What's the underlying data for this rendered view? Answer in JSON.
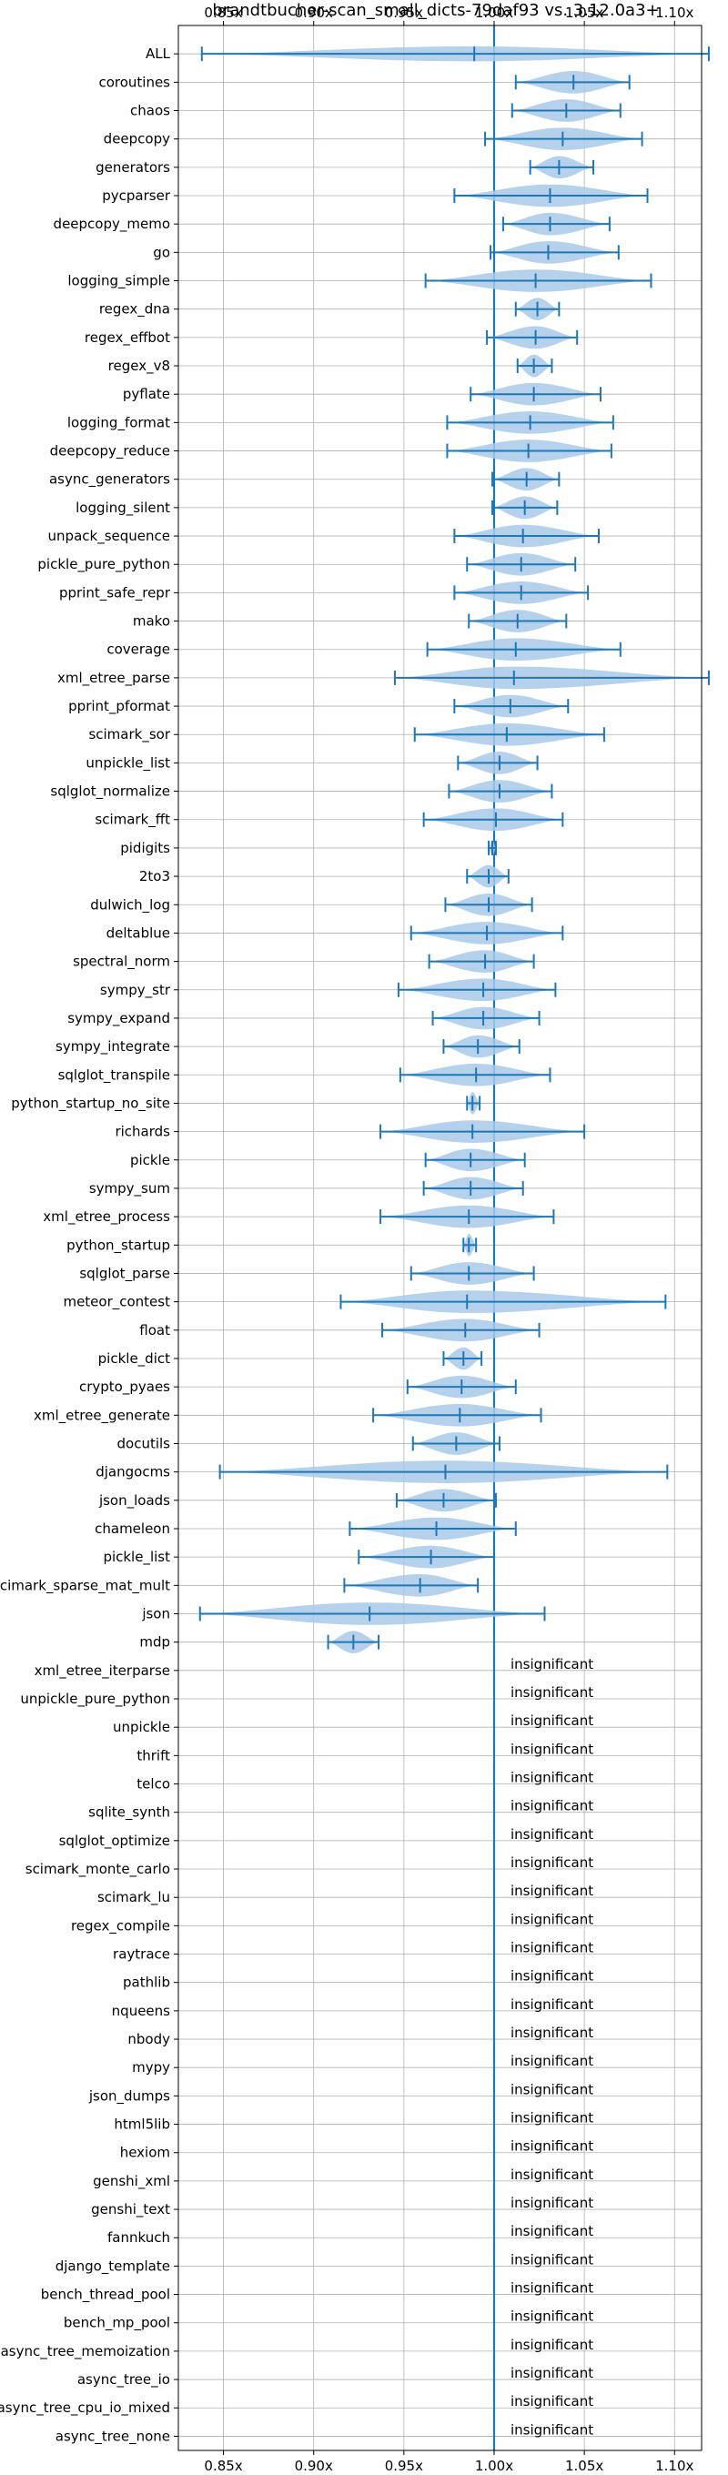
{
  "chart_data": {
    "type": "violin",
    "title": "brandtbucher-scan_small_dicts-79daf93 vs. 3.12.0a3+",
    "xlabel": "",
    "ylabel": "",
    "xlim": [
      0.825,
      1.115
    ],
    "x_ticks": [
      0.85,
      0.9,
      0.95,
      1.0,
      1.05,
      1.1
    ],
    "x_tick_labels": [
      "0.85x",
      "0.90x",
      "0.95x",
      "1.00x",
      "1.05x",
      "1.10x"
    ],
    "reference_line": 1.0,
    "grid": true,
    "series_color": "#1f77b4",
    "violin_fill": "#a9c9e8",
    "insignificant_label": "insignificant",
    "benchmarks": [
      {
        "name": "ALL",
        "min": 0.838,
        "max": 1.119,
        "median": 0.989,
        "peak": 0.989,
        "width": 0.6
      },
      {
        "name": "coroutines",
        "min": 1.012,
        "max": 1.075,
        "median": 1.044,
        "width": 0.9
      },
      {
        "name": "chaos",
        "min": 1.01,
        "max": 1.07,
        "median": 1.04,
        "width": 0.9
      },
      {
        "name": "deepcopy",
        "min": 0.995,
        "max": 1.082,
        "median": 1.038,
        "width": 0.9
      },
      {
        "name": "generators",
        "min": 1.02,
        "max": 1.055,
        "median": 1.036,
        "width": 0.9
      },
      {
        "name": "pycparser",
        "min": 0.978,
        "max": 1.085,
        "median": 1.031,
        "width": 0.9
      },
      {
        "name": "deepcopy_memo",
        "min": 1.005,
        "max": 1.064,
        "median": 1.031,
        "width": 0.9
      },
      {
        "name": "go",
        "min": 0.998,
        "max": 1.069,
        "median": 1.03,
        "width": 0.9
      },
      {
        "name": "logging_simple",
        "min": 0.962,
        "max": 1.087,
        "median": 1.023,
        "width": 0.9
      },
      {
        "name": "regex_dna",
        "min": 1.012,
        "max": 1.036,
        "median": 1.024,
        "width": 0.9
      },
      {
        "name": "regex_effbot",
        "min": 0.996,
        "max": 1.046,
        "median": 1.023,
        "width": 0.9
      },
      {
        "name": "regex_v8",
        "min": 1.013,
        "max": 1.032,
        "median": 1.022,
        "width": 0.9
      },
      {
        "name": "pyflate",
        "min": 0.987,
        "max": 1.059,
        "median": 1.022,
        "width": 0.9
      },
      {
        "name": "logging_format",
        "min": 0.974,
        "max": 1.066,
        "median": 1.02,
        "width": 0.9
      },
      {
        "name": "deepcopy_reduce",
        "min": 0.974,
        "max": 1.065,
        "median": 1.019,
        "width": 0.9
      },
      {
        "name": "async_generators",
        "min": 0.999,
        "max": 1.036,
        "median": 1.018,
        "width": 0.9
      },
      {
        "name": "logging_silent",
        "min": 0.999,
        "max": 1.035,
        "median": 1.017,
        "width": 0.9
      },
      {
        "name": "unpack_sequence",
        "min": 0.978,
        "max": 1.058,
        "median": 1.016,
        "width": 0.9
      },
      {
        "name": "pickle_pure_python",
        "min": 0.985,
        "max": 1.045,
        "median": 1.015,
        "width": 0.9
      },
      {
        "name": "pprint_safe_repr",
        "min": 0.978,
        "max": 1.052,
        "median": 1.015,
        "width": 0.9
      },
      {
        "name": "mako",
        "min": 0.986,
        "max": 1.04,
        "median": 1.013,
        "width": 0.9
      },
      {
        "name": "coverage",
        "min": 0.963,
        "max": 1.07,
        "median": 1.012,
        "width": 0.9
      },
      {
        "name": "xml_etree_parse",
        "min": 0.945,
        "max": 1.119,
        "median": 1.011,
        "width": 0.9
      },
      {
        "name": "pprint_pformat",
        "min": 0.978,
        "max": 1.041,
        "median": 1.009,
        "width": 0.9
      },
      {
        "name": "scimark_sor",
        "min": 0.956,
        "max": 1.061,
        "median": 1.007,
        "width": 0.9
      },
      {
        "name": "unpickle_list",
        "min": 0.98,
        "max": 1.024,
        "median": 1.003,
        "width": 0.9
      },
      {
        "name": "sqlglot_normalize",
        "min": 0.975,
        "max": 1.032,
        "median": 1.003,
        "width": 0.9
      },
      {
        "name": "scimark_fft",
        "min": 0.961,
        "max": 1.038,
        "median": 1.001,
        "width": 0.9
      },
      {
        "name": "pidigits",
        "min": 0.997,
        "max": 1.001,
        "median": 0.999,
        "width": 0.9
      },
      {
        "name": "2to3",
        "min": 0.985,
        "max": 1.008,
        "median": 0.997,
        "width": 0.9
      },
      {
        "name": "dulwich_log",
        "min": 0.973,
        "max": 1.021,
        "median": 0.997,
        "width": 0.9
      },
      {
        "name": "deltablue",
        "min": 0.954,
        "max": 1.038,
        "median": 0.996,
        "width": 0.9
      },
      {
        "name": "spectral_norm",
        "min": 0.964,
        "max": 1.022,
        "median": 0.995,
        "width": 0.9
      },
      {
        "name": "sympy_str",
        "min": 0.947,
        "max": 1.034,
        "median": 0.994,
        "width": 0.9
      },
      {
        "name": "sympy_expand",
        "min": 0.966,
        "max": 1.025,
        "median": 0.994,
        "width": 0.9
      },
      {
        "name": "sympy_integrate",
        "min": 0.972,
        "max": 1.014,
        "median": 0.991,
        "width": 0.9
      },
      {
        "name": "sqlglot_transpile",
        "min": 0.948,
        "max": 1.031,
        "median": 0.99,
        "width": 0.9
      },
      {
        "name": "python_startup_no_site",
        "min": 0.985,
        "max": 0.992,
        "median": 0.988,
        "width": 0.9
      },
      {
        "name": "richards",
        "min": 0.937,
        "max": 1.05,
        "median": 0.988,
        "width": 0.9
      },
      {
        "name": "pickle",
        "min": 0.962,
        "max": 1.017,
        "median": 0.987,
        "width": 0.9
      },
      {
        "name": "sympy_sum",
        "min": 0.961,
        "max": 1.016,
        "median": 0.987,
        "width": 0.9
      },
      {
        "name": "xml_etree_process",
        "min": 0.937,
        "max": 1.033,
        "median": 0.986,
        "width": 0.9
      },
      {
        "name": "python_startup",
        "min": 0.983,
        "max": 0.99,
        "median": 0.986,
        "width": 0.9
      },
      {
        "name": "sqlglot_parse",
        "min": 0.954,
        "max": 1.022,
        "median": 0.986,
        "width": 0.9
      },
      {
        "name": "meteor_contest",
        "min": 0.915,
        "max": 1.095,
        "median": 0.985,
        "width": 0.9
      },
      {
        "name": "float",
        "min": 0.938,
        "max": 1.025,
        "median": 0.984,
        "width": 0.9
      },
      {
        "name": "pickle_dict",
        "min": 0.972,
        "max": 0.993,
        "median": 0.983,
        "width": 0.9
      },
      {
        "name": "crypto_pyaes",
        "min": 0.952,
        "max": 1.012,
        "median": 0.982,
        "width": 0.9
      },
      {
        "name": "xml_etree_generate",
        "min": 0.933,
        "max": 1.026,
        "median": 0.981,
        "width": 0.9
      },
      {
        "name": "docutils",
        "min": 0.955,
        "max": 1.003,
        "median": 0.979,
        "width": 0.9
      },
      {
        "name": "djangocms",
        "min": 0.848,
        "max": 1.096,
        "median": 0.973,
        "width": 0.9
      },
      {
        "name": "json_loads",
        "min": 0.946,
        "max": 1.001,
        "median": 0.972,
        "width": 0.9
      },
      {
        "name": "chameleon",
        "min": 0.92,
        "max": 1.012,
        "median": 0.968,
        "width": 0.9
      },
      {
        "name": "pickle_list",
        "min": 0.925,
        "max": 1.0,
        "median": 0.965,
        "width": 0.9
      },
      {
        "name": "scimark_sparse_mat_mult",
        "min": 0.917,
        "max": 0.991,
        "median": 0.959,
        "width": 0.9
      },
      {
        "name": "json",
        "min": 0.837,
        "max": 1.028,
        "median": 0.931,
        "width": 0.9
      },
      {
        "name": "mdp",
        "min": 0.908,
        "max": 0.936,
        "median": 0.922,
        "width": 0.9
      }
    ],
    "insignificant": [
      "xml_etree_iterparse",
      "unpickle_pure_python",
      "unpickle",
      "thrift",
      "telco",
      "sqlite_synth",
      "sqlglot_optimize",
      "scimark_monte_carlo",
      "scimark_lu",
      "regex_compile",
      "raytrace",
      "pathlib",
      "nqueens",
      "nbody",
      "mypy",
      "json_dumps",
      "html5lib",
      "hexiom",
      "genshi_xml",
      "genshi_text",
      "fannkuch",
      "django_template",
      "bench_thread_pool",
      "bench_mp_pool",
      "async_tree_memoization",
      "async_tree_io",
      "async_tree_cpu_io_mixed",
      "async_tree_none"
    ]
  }
}
